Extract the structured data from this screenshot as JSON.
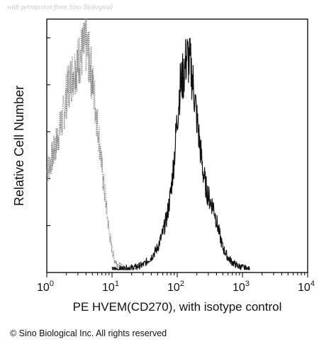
{
  "watermark": "with permission from Sino Biological",
  "copyright": "© Sino Biological Inc. All rights reserved",
  "chart_data": {
    "type": "line",
    "xscale": "log",
    "xlim": [
      1,
      10000
    ],
    "ylim": [
      0,
      100
    ],
    "xlabel": "PE HVEM(CD270), with isotype control",
    "ylabel": "Relative Cell Number",
    "xticks": [
      {
        "value": 1,
        "base": "10",
        "exp": "0"
      },
      {
        "value": 10,
        "base": "10",
        "exp": "1"
      },
      {
        "value": 100,
        "base": "10",
        "exp": "2"
      },
      {
        "value": 1000,
        "base": "10",
        "exp": "3"
      },
      {
        "value": 10000,
        "base": "10",
        "exp": "4"
      }
    ],
    "grid": false,
    "series": [
      {
        "style": "dotted",
        "color": "#8a8a8a",
        "x": [
          1.0,
          1.1,
          1.25,
          1.4,
          1.6,
          1.8,
          2.0,
          2.3,
          2.6,
          3.0,
          3.3,
          3.6,
          4.0,
          4.5,
          5.0,
          5.6,
          6.3,
          7.1,
          8.0,
          9.0,
          10.0,
          11.0,
          12.5,
          14.0,
          16.0,
          18.0,
          20.0,
          25.0
        ],
        "y": [
          40,
          43,
          47,
          52,
          58,
          64,
          72,
          78,
          82,
          85,
          88,
          90,
          92,
          86,
          78,
          66,
          55,
          40,
          28,
          16,
          8,
          4,
          2,
          1,
          1,
          0.5,
          0.3,
          0
        ]
      },
      {
        "style": "solid",
        "color": "#111111",
        "x": [
          10.0,
          16.0,
          22.0,
          30.0,
          40.0,
          50.0,
          60.0,
          70.0,
          80.0,
          90.0,
          100.0,
          110.0,
          125.0,
          140.0,
          160.0,
          180.0,
          200.0,
          225.0,
          250.0,
          280.0,
          320.0,
          360.0,
          400.0,
          450.0,
          500.0,
          600.0,
          700.0,
          850.0,
          1000.0,
          1300.0
        ],
        "y": [
          0,
          0.5,
          1,
          2,
          5,
          9,
          15,
          22,
          32,
          46,
          62,
          75,
          80,
          88,
          84,
          74,
          62,
          50,
          40,
          33,
          28,
          26,
          20,
          14,
          9,
          5,
          3,
          1.5,
          1,
          0
        ]
      }
    ]
  }
}
